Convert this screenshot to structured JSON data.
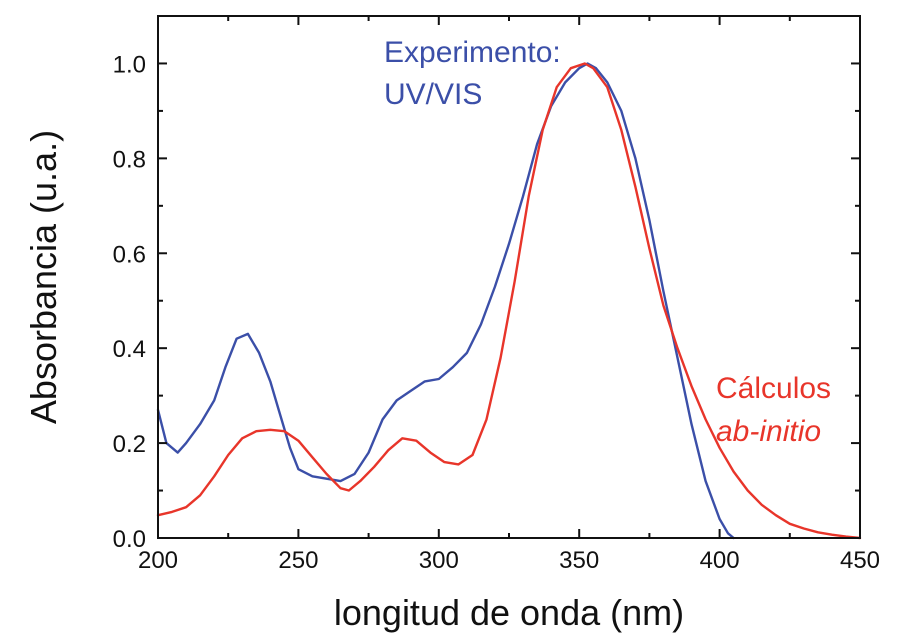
{
  "chart_data": {
    "type": "line",
    "title": "",
    "xlabel": "longitud de onda (nm)",
    "ylabel": "Absorbancia (u.a.)",
    "xlim": [
      200,
      450
    ],
    "ylim": [
      0.0,
      1.1
    ],
    "xticks": [
      "200",
      "250",
      "300",
      "350",
      "400",
      "450"
    ],
    "yticks": [
      "0.0",
      "0.2",
      "0.4",
      "0.6",
      "0.8",
      "1.0"
    ],
    "grid": false,
    "legend": "none",
    "series": [
      {
        "color": "#3b4fa8",
        "x": [
          200,
          203,
          207,
          210,
          215,
          220,
          224,
          228,
          232,
          236,
          240,
          243,
          247,
          250,
          255,
          260,
          265,
          270,
          275,
          280,
          285,
          290,
          295,
          300,
          305,
          310,
          315,
          320,
          325,
          330,
          335,
          340,
          345,
          350,
          353,
          356,
          360,
          365,
          370,
          375,
          380,
          385,
          390,
          395,
          400,
          403,
          405
        ],
        "values": [
          0.27,
          0.2,
          0.18,
          0.2,
          0.24,
          0.29,
          0.36,
          0.42,
          0.43,
          0.39,
          0.33,
          0.27,
          0.19,
          0.145,
          0.13,
          0.125,
          0.12,
          0.135,
          0.18,
          0.25,
          0.29,
          0.31,
          0.33,
          0.335,
          0.36,
          0.39,
          0.45,
          0.53,
          0.62,
          0.72,
          0.83,
          0.91,
          0.96,
          0.99,
          1.0,
          0.99,
          0.96,
          0.9,
          0.8,
          0.67,
          0.52,
          0.38,
          0.24,
          0.12,
          0.04,
          0.01,
          0.0
        ]
      },
      {
        "color": "#e8352a",
        "x": [
          200,
          205,
          210,
          215,
          220,
          225,
          230,
          235,
          240,
          245,
          250,
          255,
          260,
          265,
          268,
          272,
          277,
          282,
          287,
          292,
          297,
          302,
          307,
          312,
          317,
          322,
          327,
          332,
          337,
          342,
          347,
          352,
          355,
          360,
          365,
          370,
          375,
          380,
          385,
          390,
          395,
          400,
          405,
          410,
          415,
          420,
          425,
          430,
          435,
          440,
          445,
          450
        ],
        "values": [
          0.048,
          0.055,
          0.065,
          0.09,
          0.13,
          0.175,
          0.21,
          0.225,
          0.228,
          0.225,
          0.205,
          0.17,
          0.135,
          0.105,
          0.1,
          0.12,
          0.15,
          0.185,
          0.21,
          0.205,
          0.18,
          0.16,
          0.155,
          0.175,
          0.25,
          0.38,
          0.54,
          0.72,
          0.86,
          0.95,
          0.99,
          1.0,
          0.99,
          0.95,
          0.86,
          0.74,
          0.61,
          0.49,
          0.4,
          0.32,
          0.25,
          0.19,
          0.14,
          0.1,
          0.07,
          0.048,
          0.03,
          0.02,
          0.012,
          0.007,
          0.003,
          0.0
        ]
      }
    ],
    "annotations": [
      {
        "lines": [
          "Experimento:",
          "UV/VIS"
        ],
        "color": "#3b4fa8",
        "italic": [
          false,
          false
        ]
      },
      {
        "lines": [
          "Cálculos",
          "ab-initio"
        ],
        "color": "#e8352a",
        "italic": [
          false,
          true
        ]
      }
    ]
  }
}
